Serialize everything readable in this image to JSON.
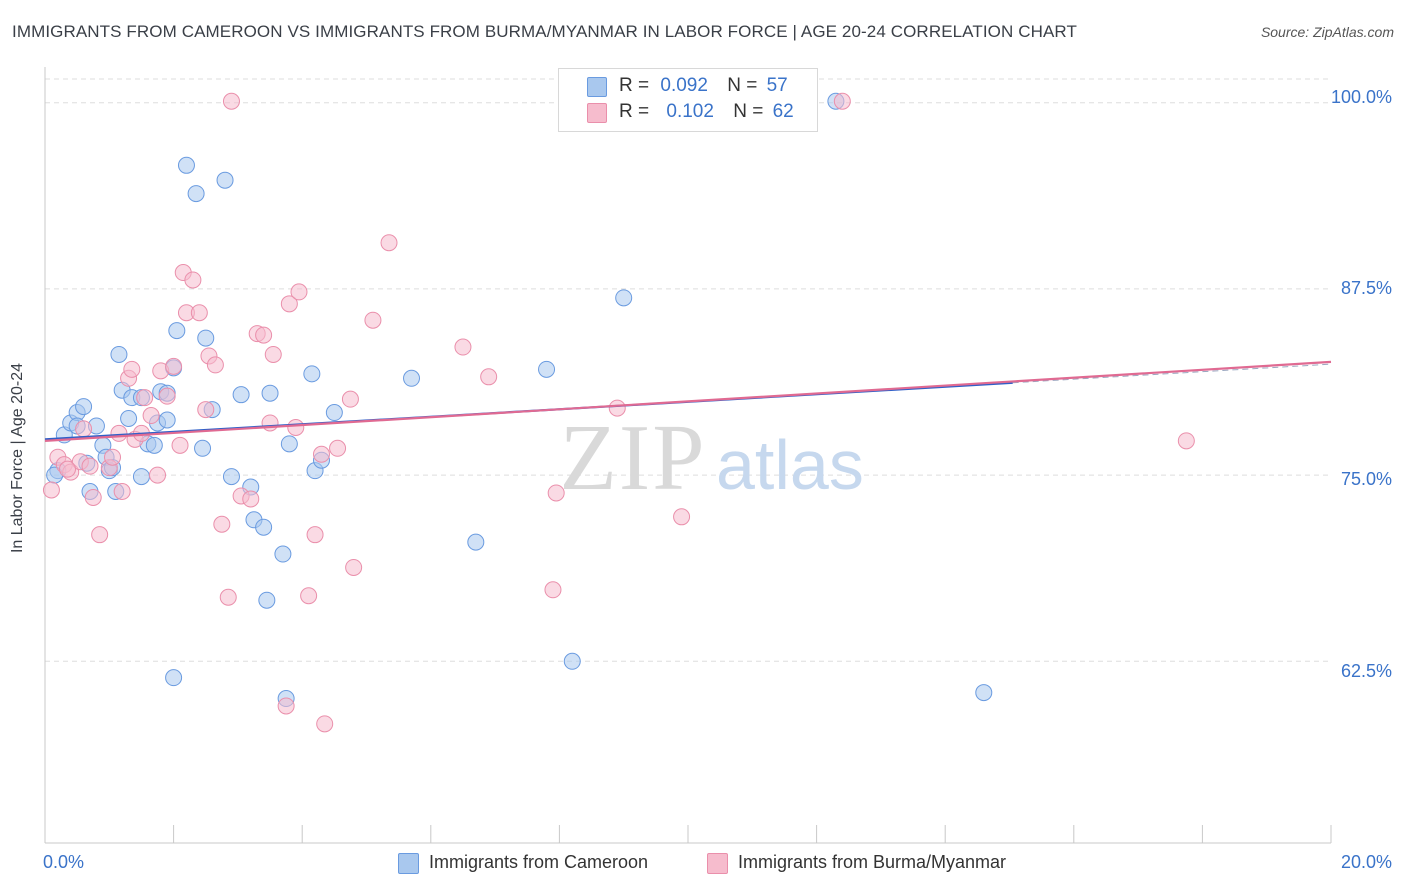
{
  "title": "IMMIGRANTS FROM CAMEROON VS IMMIGRANTS FROM BURMA/MYANMAR IN LABOR FORCE | AGE 20-24 CORRELATION CHART",
  "source": "Source: ZipAtlas.com",
  "watermark": {
    "zip": "ZIP",
    "atlas": "atlas"
  },
  "legend": {
    "r_label": "R =",
    "n_label": "N =",
    "rows": [
      {
        "r": "0.092",
        "n": "57"
      },
      {
        "r": "0.102",
        "n": "62"
      }
    ]
  },
  "bottom_legend": [
    "Immigrants from Cameroon",
    "Immigrants from Burma/Myanmar"
  ],
  "colors": {
    "cameroon_fill": "#a9c8ee",
    "cameroon_stroke": "#6a9be0",
    "cameroon_line": "#3060c8",
    "burma_fill": "#f6bccd",
    "burma_stroke": "#ea8fab",
    "burma_line": "#e06a92",
    "tick_label": "#3a73c9",
    "grid": "#dddddd"
  },
  "chart_data": {
    "type": "scatter",
    "title": "IMMIGRANTS FROM CAMEROON VS IMMIGRANTS FROM BURMA/MYANMAR IN LABOR FORCE | AGE 20-24 CORRELATION CHART",
    "xlabel": "",
    "ylabel": "In Labor Force | Age 20-24",
    "xlim": [
      0,
      20
    ],
    "ylim": [
      50.3,
      102.4
    ],
    "x_tick_labels": [
      "0.0%",
      "20.0%"
    ],
    "y_ticks": [
      62.5,
      75.0,
      87.5,
      100.0
    ],
    "y_tick_labels": [
      "62.5%",
      "75.0%",
      "87.5%",
      "100.0%"
    ],
    "grid": true,
    "legend_position": "top-center",
    "series": [
      {
        "name": "Immigrants from Cameroon",
        "r": 0.092,
        "n": 57,
        "trend": {
          "x": [
            0,
            15.05
          ],
          "y": [
            77.4,
            81.2
          ]
        },
        "points": [
          [
            0.2,
            75.3
          ],
          [
            0.3,
            77.7
          ],
          [
            0.4,
            78.5
          ],
          [
            0.5,
            79.2
          ],
          [
            0.6,
            79.6
          ],
          [
            0.65,
            75.8
          ],
          [
            0.7,
            73.9
          ],
          [
            0.8,
            78.3
          ],
          [
            0.9,
            77.0
          ],
          [
            0.95,
            76.2
          ],
          [
            1.0,
            75.3
          ],
          [
            1.1,
            73.9
          ],
          [
            1.15,
            83.1
          ],
          [
            1.2,
            80.7
          ],
          [
            1.3,
            78.8
          ],
          [
            1.35,
            80.2
          ],
          [
            1.5,
            80.2
          ],
          [
            1.5,
            74.9
          ],
          [
            1.6,
            77.1
          ],
          [
            1.7,
            77.0
          ],
          [
            1.75,
            78.5
          ],
          [
            1.8,
            80.6
          ],
          [
            1.9,
            78.7
          ],
          [
            2.0,
            82.2
          ],
          [
            2.05,
            84.7
          ],
          [
            2.2,
            95.8
          ],
          [
            2.35,
            93.9
          ],
          [
            2.45,
            76.8
          ],
          [
            2.5,
            84.2
          ],
          [
            2.6,
            79.4
          ],
          [
            2.8,
            94.8
          ],
          [
            2.9,
            74.9
          ],
          [
            3.05,
            80.4
          ],
          [
            3.2,
            74.2
          ],
          [
            3.25,
            72.0
          ],
          [
            3.4,
            71.5
          ],
          [
            3.45,
            66.6
          ],
          [
            3.5,
            80.5
          ],
          [
            3.7,
            69.7
          ],
          [
            3.75,
            60.0
          ],
          [
            3.8,
            77.1
          ],
          [
            4.15,
            81.8
          ],
          [
            4.2,
            75.3
          ],
          [
            4.3,
            76.0
          ],
          [
            4.5,
            79.2
          ],
          [
            5.7,
            81.5
          ],
          [
            6.7,
            70.5
          ],
          [
            7.8,
            82.1
          ],
          [
            8.2,
            62.5
          ],
          [
            9.0,
            86.9
          ],
          [
            12.3,
            100.1
          ],
          [
            14.6,
            60.4
          ],
          [
            2.0,
            61.4
          ],
          [
            0.15,
            75.0
          ],
          [
            1.9,
            80.5
          ],
          [
            0.5,
            78.3
          ],
          [
            1.05,
            75.5
          ]
        ]
      },
      {
        "name": "Immigrants from Burma/Myanmar",
        "r": 0.102,
        "n": 62,
        "trend": {
          "x": [
            0,
            20.0
          ],
          "y": [
            77.3,
            82.6
          ]
        },
        "points": [
          [
            0.1,
            74.0
          ],
          [
            0.2,
            76.2
          ],
          [
            0.3,
            75.7
          ],
          [
            0.4,
            75.2
          ],
          [
            0.55,
            75.9
          ],
          [
            0.6,
            78.1
          ],
          [
            0.7,
            75.6
          ],
          [
            0.75,
            73.5
          ],
          [
            0.85,
            71.0
          ],
          [
            1.0,
            75.5
          ],
          [
            1.05,
            76.2
          ],
          [
            1.15,
            77.8
          ],
          [
            1.2,
            73.9
          ],
          [
            1.3,
            81.5
          ],
          [
            1.35,
            82.1
          ],
          [
            1.4,
            77.4
          ],
          [
            1.5,
            77.8
          ],
          [
            1.55,
            80.2
          ],
          [
            1.65,
            79.0
          ],
          [
            1.75,
            75.0
          ],
          [
            1.8,
            82.0
          ],
          [
            1.9,
            80.3
          ],
          [
            2.0,
            82.3
          ],
          [
            2.1,
            77.0
          ],
          [
            2.15,
            88.6
          ],
          [
            2.2,
            85.9
          ],
          [
            2.3,
            88.1
          ],
          [
            2.4,
            85.9
          ],
          [
            2.5,
            79.4
          ],
          [
            2.55,
            83.0
          ],
          [
            2.65,
            82.4
          ],
          [
            2.75,
            71.7
          ],
          [
            2.85,
            66.8
          ],
          [
            2.9,
            100.1
          ],
          [
            3.05,
            73.6
          ],
          [
            3.2,
            73.4
          ],
          [
            3.3,
            84.5
          ],
          [
            3.4,
            84.4
          ],
          [
            3.5,
            78.5
          ],
          [
            3.55,
            83.1
          ],
          [
            3.75,
            59.5
          ],
          [
            3.8,
            86.5
          ],
          [
            3.9,
            78.2
          ],
          [
            3.95,
            87.3
          ],
          [
            4.1,
            66.9
          ],
          [
            4.2,
            71.0
          ],
          [
            4.3,
            76.4
          ],
          [
            4.35,
            58.3
          ],
          [
            4.55,
            76.8
          ],
          [
            4.75,
            80.1
          ],
          [
            4.8,
            68.8
          ],
          [
            5.1,
            85.4
          ],
          [
            5.35,
            90.6
          ],
          [
            6.5,
            83.6
          ],
          [
            6.9,
            81.6
          ],
          [
            7.9,
            67.3
          ],
          [
            7.95,
            73.8
          ],
          [
            8.9,
            79.5
          ],
          [
            9.9,
            72.2
          ],
          [
            12.4,
            100.1
          ],
          [
            17.75,
            77.3
          ],
          [
            0.35,
            75.4
          ]
        ]
      }
    ]
  }
}
